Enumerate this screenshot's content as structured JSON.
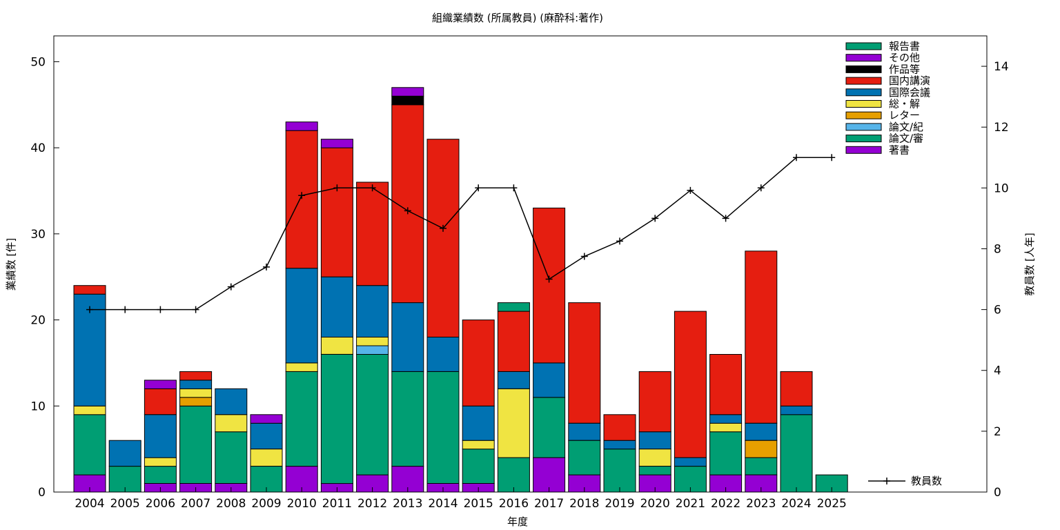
{
  "chart_data": {
    "type": "bar",
    "stacked": true,
    "title": "組織業績数 (所属教員) (麻酔科:著作)",
    "xlabel": "年度",
    "ylabel": "業績数 [件]",
    "y2label": "教員数 [人年]",
    "ylim": [
      0,
      53
    ],
    "y2lim": [
      0,
      15
    ],
    "yticks": [
      0,
      10,
      20,
      30,
      40,
      50
    ],
    "y2ticks": [
      0,
      2,
      4,
      6,
      8,
      10,
      12,
      14
    ],
    "grid": false,
    "legend_position": "top-right",
    "categories": [
      "2004",
      "2005",
      "2006",
      "2007",
      "2008",
      "2009",
      "2010",
      "2011",
      "2012",
      "2013",
      "2014",
      "2015",
      "2016",
      "2017",
      "2018",
      "2019",
      "2020",
      "2021",
      "2022",
      "2023",
      "2024",
      "2025"
    ],
    "series": [
      {
        "name": "著書",
        "color": "#9400D3",
        "values": [
          2,
          0,
          1,
          1,
          1,
          0,
          3,
          1,
          2,
          3,
          1,
          1,
          0,
          4,
          2,
          0,
          2,
          0,
          2,
          2,
          0,
          0
        ]
      },
      {
        "name": "論文/審",
        "color": "#009E73",
        "values": [
          7,
          3,
          2,
          9,
          6,
          3,
          11,
          15,
          14,
          11,
          13,
          4,
          4,
          7,
          4,
          5,
          1,
          3,
          5,
          2,
          9,
          2
        ]
      },
      {
        "name": "論文/紀",
        "color": "#56B4E9",
        "values": [
          0,
          0,
          0,
          0,
          0,
          0,
          0,
          0,
          1,
          0,
          0,
          0,
          0,
          0,
          0,
          0,
          0,
          0,
          0,
          0,
          0,
          0
        ]
      },
      {
        "name": "レター",
        "color": "#E69F00",
        "values": [
          0,
          0,
          0,
          1,
          0,
          0,
          0,
          0,
          0,
          0,
          0,
          0,
          0,
          0,
          0,
          0,
          0,
          0,
          0,
          2,
          0,
          0
        ]
      },
      {
        "name": "総・解",
        "color": "#F0E442",
        "values": [
          1,
          0,
          1,
          1,
          2,
          2,
          1,
          2,
          1,
          0,
          0,
          1,
          8,
          0,
          0,
          0,
          2,
          0,
          1,
          0,
          0,
          0
        ]
      },
      {
        "name": "国際会議",
        "color": "#0072B2",
        "values": [
          13,
          3,
          5,
          1,
          3,
          3,
          11,
          7,
          6,
          8,
          4,
          4,
          2,
          4,
          2,
          1,
          2,
          1,
          1,
          2,
          1,
          0
        ]
      },
      {
        "name": "国内講演",
        "color": "#E51E10",
        "values": [
          1,
          0,
          3,
          1,
          0,
          0,
          16,
          15,
          12,
          23,
          23,
          10,
          7,
          18,
          14,
          3,
          7,
          17,
          7,
          20,
          4,
          0
        ]
      },
      {
        "name": "作品等",
        "color": "#000000",
        "values": [
          0,
          0,
          0,
          0,
          0,
          0,
          0,
          0,
          0,
          1,
          0,
          0,
          0,
          0,
          0,
          0,
          0,
          0,
          0,
          0,
          0,
          0
        ]
      },
      {
        "name": "その他",
        "color": "#9400D3",
        "values": [
          0,
          0,
          1,
          0,
          0,
          1,
          1,
          1,
          0,
          1,
          0,
          0,
          0,
          0,
          0,
          0,
          0,
          0,
          0,
          0,
          0,
          0
        ]
      },
      {
        "name": "報告書",
        "color": "#009E73",
        "values": [
          0,
          0,
          0,
          0,
          0,
          0,
          0,
          0,
          0,
          0,
          0,
          0,
          1,
          0,
          0,
          0,
          0,
          0,
          0,
          0,
          0,
          0
        ]
      }
    ],
    "line_series": {
      "name": "教員数",
      "axis": "y2",
      "color": "#000000",
      "x": [
        "2004",
        "2005",
        "2006",
        "2007",
        "2008",
        "2009",
        "2010",
        "2011",
        "2012",
        "2013",
        "2014",
        "2015",
        "2016",
        "2017",
        "2018",
        "2019",
        "2020",
        "2021",
        "2022",
        "2023",
        "2024",
        "2025"
      ],
      "values": [
        6,
        6,
        6,
        6,
        6.75,
        7.4,
        9.75,
        10,
        10,
        9.25,
        8.67,
        10,
        10,
        7,
        7.75,
        8.25,
        9,
        9.92,
        9,
        10,
        11,
        11
      ]
    },
    "legend_order": [
      "報告書",
      "その他",
      "作品等",
      "国内講演",
      "国際会議",
      "総・解",
      "レター",
      "論文/紀",
      "論文/審",
      "著書"
    ]
  }
}
